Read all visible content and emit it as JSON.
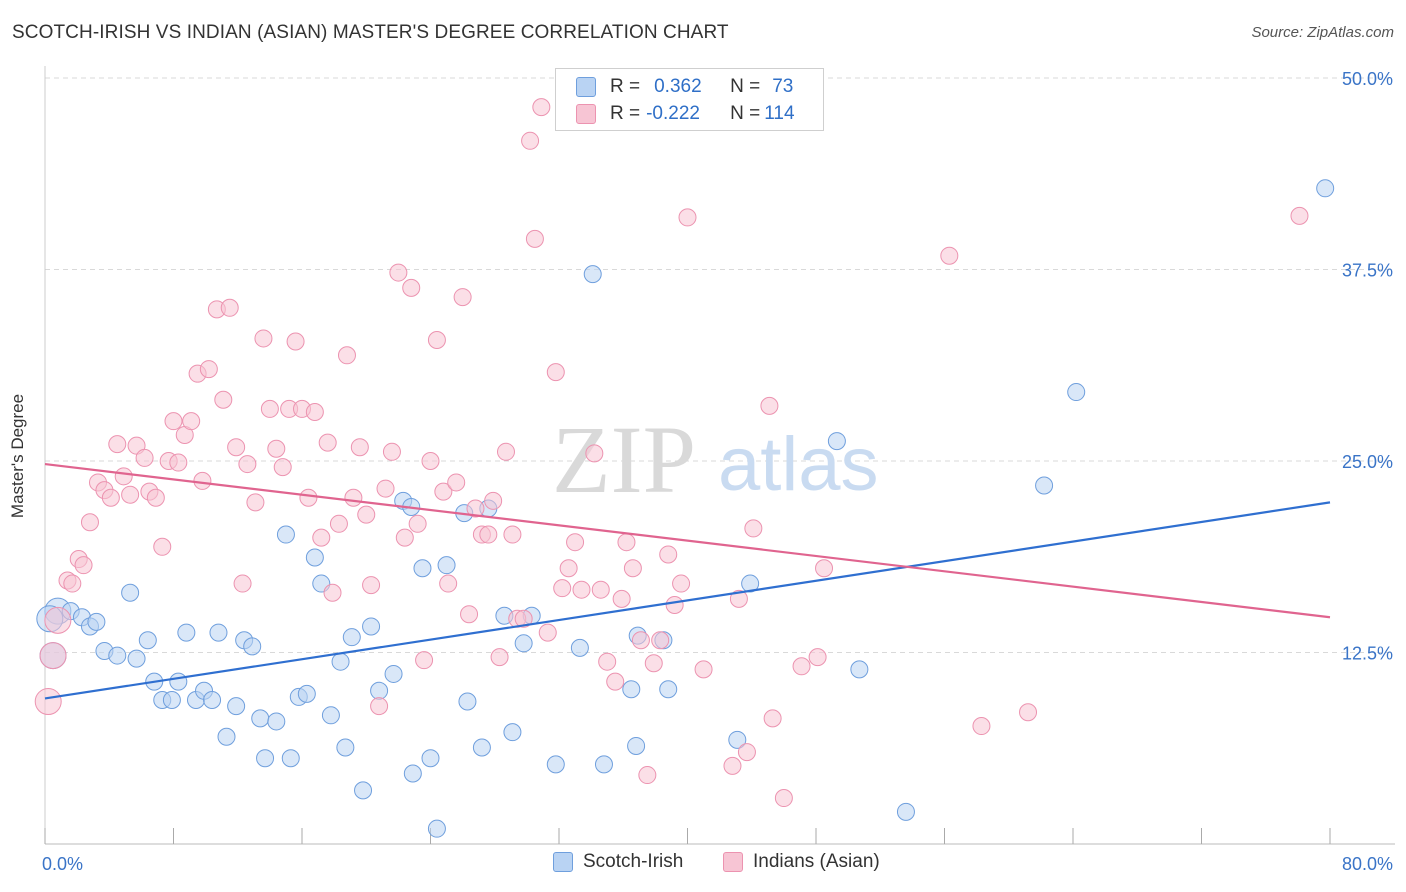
{
  "title": "SCOTCH-IRISH VS INDIAN (ASIAN) MASTER'S DEGREE CORRELATION CHART",
  "source": "Source: ZipAtlas.com",
  "watermark": {
    "zip": "ZIP",
    "atlas": "atlas"
  },
  "legend": {
    "series1": {
      "r_label": "R =",
      "r_value": "0.362",
      "n_label": "N =",
      "n_value": "73"
    },
    "series2": {
      "r_label": "R =",
      "r_value": "-0.222",
      "n_label": "N =",
      "n_value": "114"
    }
  },
  "colors": {
    "blue_fill": "#b9d3f3",
    "blue_stroke": "#6f9fdd",
    "blue_line": "#2f6fd0",
    "pink_fill": "#f7c5d4",
    "pink_stroke": "#ec93b0",
    "pink_line": "#e0648f",
    "tick_text": "#3a74c7",
    "grid": "#d9d9d9"
  },
  "chart_data": {
    "type": "scatter",
    "title": "SCOTCH-IRISH VS INDIAN (ASIAN) MASTER'S DEGREE CORRELATION CHART",
    "xlabel": "",
    "ylabel": "Master's Degree",
    "xlim": [
      0,
      80
    ],
    "ylim": [
      0,
      50
    ],
    "x_tick_labels": [
      "0.0%",
      "80.0%"
    ],
    "y_ticks": [
      12.5,
      25.0,
      37.5,
      50.0
    ],
    "y_tick_labels": [
      "12.5%",
      "25.0%",
      "37.5%",
      "50.0%"
    ],
    "series": [
      {
        "name": "Scotch-Irish",
        "trend": {
          "x": [
            0,
            80
          ],
          "y": [
            9.5,
            22.3
          ]
        },
        "points": [
          [
            0.8,
            15.2,
            1
          ],
          [
            0.3,
            14.7,
            1
          ],
          [
            0.5,
            12.3,
            1
          ],
          [
            1.6,
            15.2,
            0
          ],
          [
            2.3,
            14.8,
            0
          ],
          [
            2.8,
            14.2,
            0
          ],
          [
            3.2,
            14.5,
            0
          ],
          [
            3.7,
            12.6,
            0
          ],
          [
            4.5,
            12.3,
            0
          ],
          [
            5.3,
            16.4,
            0
          ],
          [
            5.7,
            12.1,
            0
          ],
          [
            6.4,
            13.3,
            0
          ],
          [
            6.8,
            10.6,
            0
          ],
          [
            7.3,
            9.4,
            0
          ],
          [
            7.9,
            9.4,
            0
          ],
          [
            8.3,
            10.6,
            0
          ],
          [
            8.8,
            13.8,
            0
          ],
          [
            9.4,
            9.4,
            0
          ],
          [
            9.9,
            10.0,
            0
          ],
          [
            10.4,
            9.4,
            0
          ],
          [
            10.8,
            13.8,
            0
          ],
          [
            11.3,
            7.0,
            0
          ],
          [
            11.9,
            9.0,
            0
          ],
          [
            12.4,
            13.3,
            0
          ],
          [
            12.9,
            12.9,
            0
          ],
          [
            13.4,
            8.2,
            0
          ],
          [
            13.7,
            5.6,
            0
          ],
          [
            14.4,
            8.0,
            0
          ],
          [
            15.0,
            20.2,
            0
          ],
          [
            15.3,
            5.6,
            0
          ],
          [
            15.8,
            9.6,
            0
          ],
          [
            16.3,
            9.8,
            0
          ],
          [
            16.8,
            18.7,
            0
          ],
          [
            17.2,
            17.0,
            0
          ],
          [
            17.8,
            8.4,
            0
          ],
          [
            18.4,
            11.9,
            0
          ],
          [
            18.7,
            6.3,
            0
          ],
          [
            19.1,
            13.5,
            0
          ],
          [
            19.8,
            3.5,
            0
          ],
          [
            20.3,
            14.2,
            0
          ],
          [
            20.8,
            10.0,
            0
          ],
          [
            21.7,
            11.1,
            0
          ],
          [
            22.3,
            22.4,
            0
          ],
          [
            22.8,
            22.0,
            0
          ],
          [
            22.9,
            4.6,
            0
          ],
          [
            23.5,
            18.0,
            0
          ],
          [
            24.0,
            5.6,
            0
          ],
          [
            24.4,
            1.0,
            0
          ],
          [
            25.0,
            18.2,
            0
          ],
          [
            26.1,
            21.6,
            0
          ],
          [
            26.3,
            9.3,
            0
          ],
          [
            27.2,
            6.3,
            0
          ],
          [
            27.6,
            21.9,
            0
          ],
          [
            28.6,
            14.9,
            0
          ],
          [
            29.1,
            7.3,
            0
          ],
          [
            29.8,
            13.1,
            0
          ],
          [
            30.3,
            14.9,
            0
          ],
          [
            31.8,
            5.2,
            0
          ],
          [
            33.3,
            12.8,
            0
          ],
          [
            34.1,
            37.2,
            0
          ],
          [
            34.8,
            5.2,
            0
          ],
          [
            36.5,
            10.1,
            0
          ],
          [
            36.8,
            6.4,
            0
          ],
          [
            36.9,
            13.6,
            0
          ],
          [
            38.5,
            13.3,
            0
          ],
          [
            38.8,
            10.1,
            0
          ],
          [
            43.1,
            6.8,
            0
          ],
          [
            43.9,
            17.0,
            0
          ],
          [
            49.3,
            26.3,
            0
          ],
          [
            50.7,
            11.4,
            0
          ],
          [
            53.6,
            2.1,
            0
          ],
          [
            62.2,
            23.4,
            0
          ],
          [
            64.2,
            29.5,
            0
          ],
          [
            79.7,
            42.8,
            0
          ]
        ]
      },
      {
        "name": "Indians (Asian)",
        "trend": {
          "x": [
            0,
            80
          ],
          "y": [
            24.8,
            14.8
          ]
        },
        "points": [
          [
            0.2,
            9.3,
            1
          ],
          [
            0.5,
            12.3,
            1
          ],
          [
            0.8,
            14.6,
            1
          ],
          [
            1.4,
            17.2,
            0
          ],
          [
            1.7,
            17.0,
            0
          ],
          [
            2.1,
            18.6,
            0
          ],
          [
            2.4,
            18.2,
            0
          ],
          [
            2.8,
            21.0,
            0
          ],
          [
            3.3,
            23.6,
            0
          ],
          [
            3.7,
            23.1,
            0
          ],
          [
            4.1,
            22.6,
            0
          ],
          [
            4.5,
            26.1,
            0
          ],
          [
            4.9,
            24.0,
            0
          ],
          [
            5.3,
            22.8,
            0
          ],
          [
            5.7,
            26.0,
            0
          ],
          [
            6.2,
            25.2,
            0
          ],
          [
            6.5,
            23.0,
            0
          ],
          [
            6.9,
            22.6,
            0
          ],
          [
            7.3,
            19.4,
            0
          ],
          [
            7.7,
            25.0,
            0
          ],
          [
            8.0,
            27.6,
            0
          ],
          [
            8.3,
            24.9,
            0
          ],
          [
            8.7,
            26.7,
            0
          ],
          [
            9.1,
            27.6,
            0
          ],
          [
            9.5,
            30.7,
            0
          ],
          [
            9.8,
            23.7,
            0
          ],
          [
            10.2,
            31.0,
            0
          ],
          [
            10.7,
            34.9,
            0
          ],
          [
            11.1,
            29.0,
            0
          ],
          [
            11.5,
            35.0,
            0
          ],
          [
            11.9,
            25.9,
            0
          ],
          [
            12.3,
            17.0,
            0
          ],
          [
            12.6,
            24.8,
            0
          ],
          [
            13.1,
            22.3,
            0
          ],
          [
            13.6,
            33.0,
            0
          ],
          [
            14.0,
            28.4,
            0
          ],
          [
            14.4,
            25.8,
            0
          ],
          [
            14.8,
            24.6,
            0
          ],
          [
            15.2,
            28.4,
            0
          ],
          [
            15.6,
            32.8,
            0
          ],
          [
            16.0,
            28.4,
            0
          ],
          [
            16.4,
            22.6,
            0
          ],
          [
            16.8,
            28.2,
            0
          ],
          [
            17.2,
            20.0,
            0
          ],
          [
            17.6,
            26.2,
            0
          ],
          [
            17.9,
            16.4,
            0
          ],
          [
            18.3,
            20.9,
            0
          ],
          [
            18.8,
            31.9,
            0
          ],
          [
            19.2,
            22.6,
            0
          ],
          [
            19.6,
            25.9,
            0
          ],
          [
            20.0,
            21.5,
            0
          ],
          [
            20.3,
            16.9,
            0
          ],
          [
            20.8,
            9.0,
            0
          ],
          [
            21.2,
            23.2,
            0
          ],
          [
            21.6,
            25.6,
            0
          ],
          [
            22.0,
            37.3,
            0
          ],
          [
            22.4,
            20.0,
            0
          ],
          [
            22.8,
            36.3,
            0
          ],
          [
            23.2,
            20.9,
            0
          ],
          [
            23.6,
            12.0,
            0
          ],
          [
            24.0,
            25.0,
            0
          ],
          [
            24.4,
            32.9,
            0
          ],
          [
            24.8,
            23.0,
            0
          ],
          [
            25.1,
            17.0,
            0
          ],
          [
            25.6,
            23.6,
            0
          ],
          [
            26.0,
            35.7,
            0
          ],
          [
            26.4,
            15.0,
            0
          ],
          [
            26.8,
            21.9,
            0
          ],
          [
            27.2,
            20.2,
            0
          ],
          [
            27.6,
            20.2,
            0
          ],
          [
            27.9,
            22.4,
            0
          ],
          [
            28.3,
            12.2,
            0
          ],
          [
            28.7,
            25.6,
            0
          ],
          [
            29.1,
            20.2,
            0
          ],
          [
            29.4,
            14.7,
            0
          ],
          [
            29.8,
            14.7,
            0
          ],
          [
            30.2,
            45.9,
            0
          ],
          [
            30.5,
            39.5,
            0
          ],
          [
            30.9,
            48.1,
            0
          ],
          [
            31.3,
            13.8,
            0
          ],
          [
            31.8,
            30.8,
            0
          ],
          [
            32.2,
            16.7,
            0
          ],
          [
            32.6,
            18.0,
            0
          ],
          [
            33.0,
            19.7,
            0
          ],
          [
            33.4,
            16.6,
            0
          ],
          [
            34.2,
            25.5,
            0
          ],
          [
            34.6,
            16.6,
            0
          ],
          [
            35.0,
            11.9,
            0
          ],
          [
            35.5,
            10.6,
            0
          ],
          [
            35.9,
            16.0,
            0
          ],
          [
            36.2,
            19.7,
            0
          ],
          [
            36.6,
            18.0,
            0
          ],
          [
            37.1,
            13.3,
            0
          ],
          [
            37.5,
            4.5,
            0
          ],
          [
            37.9,
            11.8,
            0
          ],
          [
            38.3,
            13.3,
            0
          ],
          [
            38.8,
            18.9,
            0
          ],
          [
            39.2,
            15.6,
            0
          ],
          [
            39.6,
            17.0,
            0
          ],
          [
            40.0,
            40.9,
            0
          ],
          [
            41.0,
            11.4,
            0
          ],
          [
            42.8,
            5.1,
            0
          ],
          [
            43.2,
            16.0,
            0
          ],
          [
            43.7,
            6.0,
            0
          ],
          [
            44.1,
            20.6,
            0
          ],
          [
            45.1,
            28.6,
            0
          ],
          [
            45.3,
            8.2,
            0
          ],
          [
            46.0,
            3.0,
            0
          ],
          [
            47.1,
            11.6,
            0
          ],
          [
            48.1,
            12.2,
            0
          ],
          [
            48.5,
            18.0,
            0
          ],
          [
            56.3,
            38.4,
            0
          ],
          [
            58.3,
            7.7,
            0
          ],
          [
            61.2,
            8.6,
            0
          ],
          [
            78.1,
            41.0,
            0
          ]
        ]
      }
    ]
  }
}
